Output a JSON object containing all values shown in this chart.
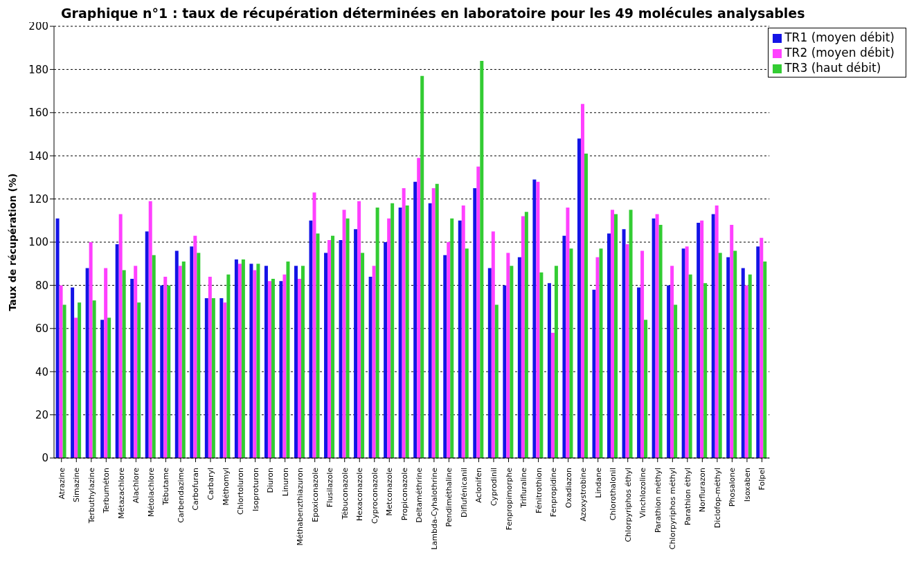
{
  "chart_data": {
    "type": "bar",
    "title": "Graphique n°1 : taux de récupération déterminées en laboratoire pour les 49 molécules analysables",
    "ylabel": "Taux de récupération (%)",
    "categories": [
      "Atrazine",
      "Simazine",
      "Terbuthylazine",
      "Terbuméton",
      "Métazachlore",
      "Alachlore",
      "Métolachlore",
      "Tébutame",
      "Carbendazime",
      "Carbofuran",
      "Carbaryl",
      "Méthomyl",
      "Chlortoluron",
      "Isoproturon",
      "Diuron",
      "Linuron",
      "Méthabenzthiazuron",
      "Epoxiconazole",
      "Flusilazole",
      "Tébuconazole",
      "Hexaconazole",
      "Cyproconazole",
      "Metconazole",
      "Propiconazole",
      "Deltaméthrine",
      "Lambda-Cyhalothrine",
      "Pendiméthaline",
      "Diflufénicanil",
      "Aclonifen",
      "Cyprodinil",
      "Fenpropimorphe",
      "Trifluraline",
      "Fénitrothion",
      "Fenpropidine",
      "Oxadiazon",
      "Azoxystrobine",
      "Lindane",
      "Chlorothalonil",
      "Chlorpyriphos éthyl",
      "Vinchlozoline",
      "Parathion méthyl",
      "Chlorpyriphos méthyl",
      "Parathion éthyl",
      "Norflurazon",
      "Diclofop-méthyl",
      "Phosalone",
      "Isoxaben",
      "Folpel"
    ],
    "series": [
      {
        "name": "TR1 (moyen débit)",
        "color": "#1414e6",
        "values": [
          111,
          79,
          88,
          64,
          99,
          83,
          105,
          80,
          96,
          98,
          74,
          74,
          92,
          90,
          89,
          82,
          89,
          110,
          95,
          101,
          106,
          84,
          100,
          116,
          128,
          118,
          94,
          110,
          125,
          88,
          80,
          93,
          129,
          81,
          103,
          148,
          78,
          104,
          106,
          79,
          111,
          80,
          97,
          109,
          113,
          93,
          88,
          98
        ]
      },
      {
        "name": "TR2 (moyen débit)",
        "color": "#ff40ff",
        "values": [
          80,
          65,
          100,
          88,
          113,
          89,
          119,
          84,
          89,
          103,
          84,
          72,
          90,
          87,
          82,
          85,
          83,
          123,
          101,
          115,
          119,
          89,
          111,
          125,
          139,
          125,
          100,
          117,
          135,
          105,
          95,
          112,
          128,
          58,
          116,
          164,
          93,
          115,
          99,
          96,
          113,
          89,
          98,
          110,
          117,
          108,
          80,
          102
        ]
      },
      {
        "name": "TR3 (haut débit)",
        "color": "#33cc33",
        "values": [
          71,
          72,
          73,
          65,
          87,
          72,
          94,
          80,
          91,
          95,
          74,
          85,
          92,
          90,
          83,
          91,
          89,
          104,
          103,
          111,
          95,
          116,
          118,
          117,
          177,
          127,
          111,
          97,
          184,
          71,
          89,
          114,
          86,
          89,
          97,
          141,
          97,
          113,
          115,
          64,
          108,
          71,
          85,
          81,
          95,
          96,
          85,
          91
        ]
      }
    ],
    "ylim": [
      0,
      200
    ],
    "yticks": [
      0,
      20,
      40,
      60,
      80,
      100,
      120,
      140,
      160,
      180,
      200
    ],
    "grid": "y",
    "legend": "top right"
  }
}
